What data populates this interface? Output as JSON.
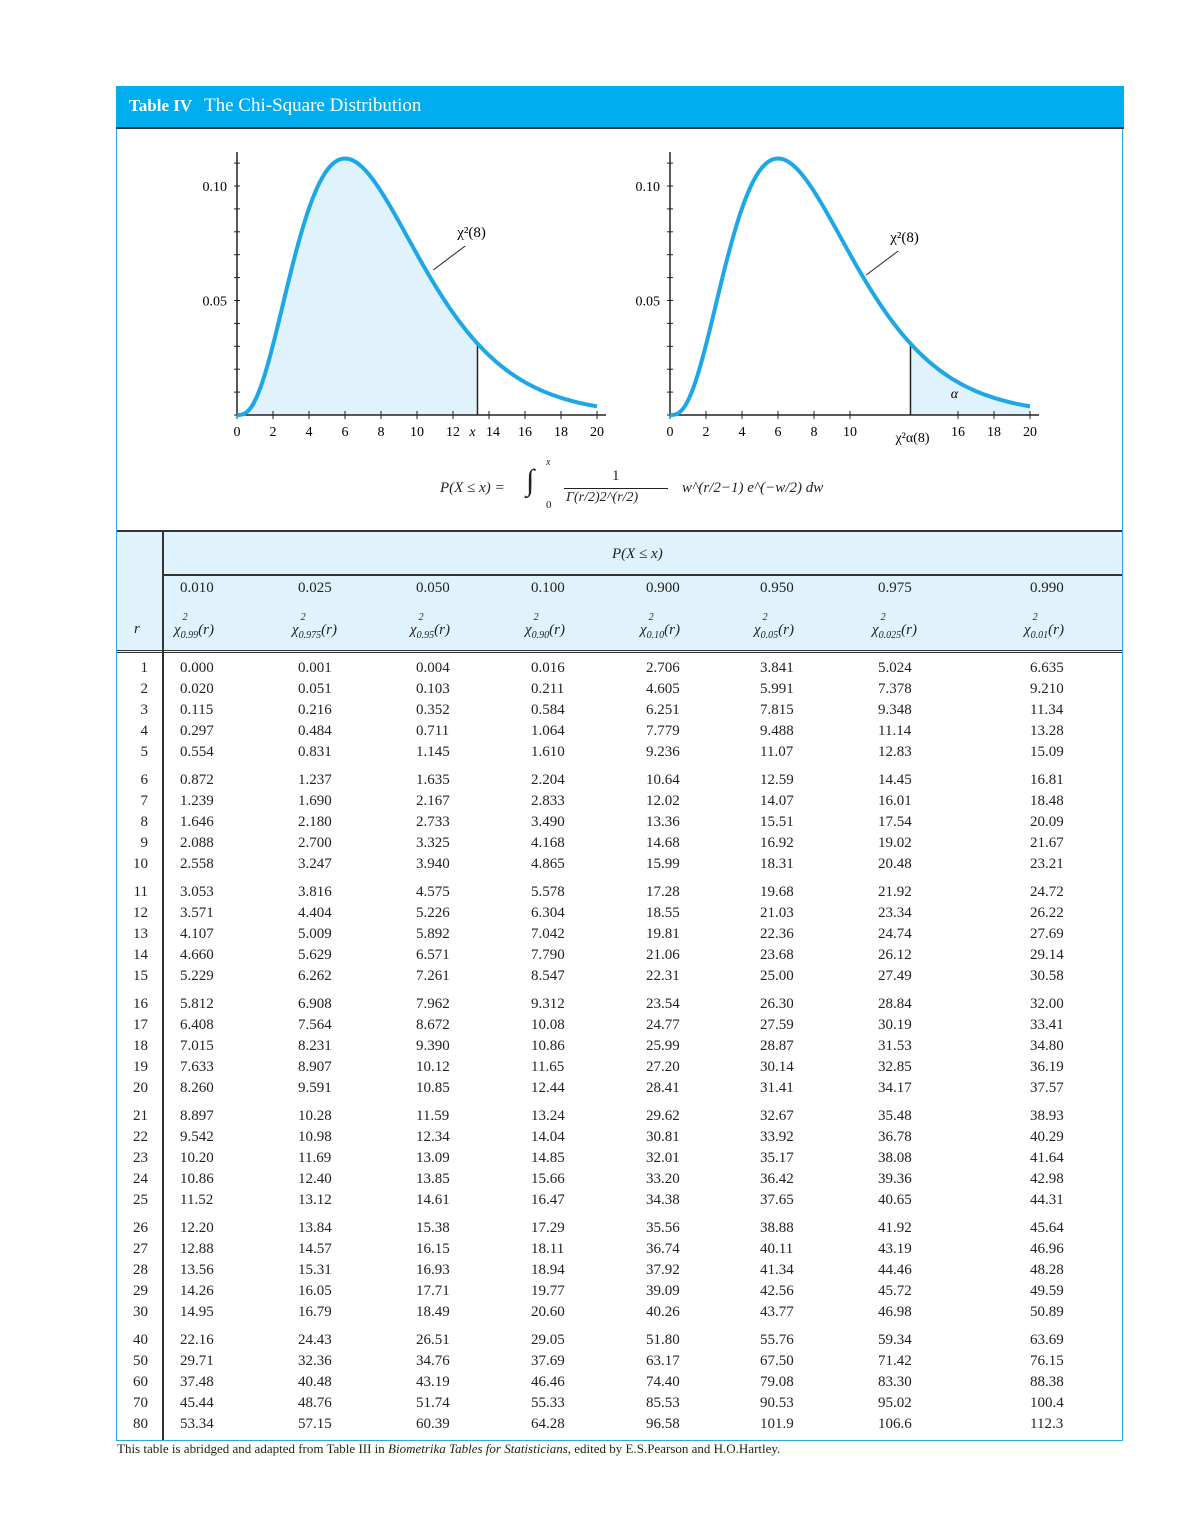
{
  "header": {
    "label": "Table IV",
    "title": "The Chi-Square Distribution",
    "accent": "#00aeef",
    "fill": "#e0f3fc"
  },
  "figures": [
    {
      "curve_label": "χ²(8)",
      "df": 8,
      "shaded": "left",
      "boundary": 13.36,
      "boundary_label": "x",
      "yticks": [
        "0.10",
        "0.05"
      ],
      "xticks": [
        "0",
        "2",
        "4",
        "6",
        "8",
        "10",
        "12",
        "14",
        "16",
        "18",
        "20"
      ]
    },
    {
      "curve_label": "χ²(8)",
      "df": 8,
      "shaded": "right",
      "boundary": 13.36,
      "boundary_label": "χ²α(8)",
      "area_label": "α",
      "yticks": [
        "0.10",
        "0.05"
      ],
      "xticks": [
        "0",
        "2",
        "4",
        "6",
        "8",
        "10",
        "16",
        "18",
        "20"
      ]
    }
  ],
  "formula": {
    "lhs": "P(X ≤ x) =",
    "integral": "∫",
    "lower": "0",
    "upper": "x",
    "numerator": "1",
    "denominator": "Γ(r/2)2^(r/2)",
    "integrand": "w^(r/2−1) e^(−w/2) dw"
  },
  "table": {
    "super_header": "P(X ≤ x)",
    "r_header": "r",
    "probs": [
      "0.010",
      "0.025",
      "0.050",
      "0.100",
      "0.900",
      "0.950",
      "0.975",
      "0.990"
    ],
    "quantile_subs": [
      "0.99",
      "0.975",
      "0.95",
      "0.90",
      "0.10",
      "0.05",
      "0.025",
      "0.01"
    ],
    "rows": [
      [
        "1",
        "0.000",
        "0.001",
        "0.004",
        "0.016",
        "2.706",
        "3.841",
        "5.024",
        "6.635"
      ],
      [
        "2",
        "0.020",
        "0.051",
        "0.103",
        "0.211",
        "4.605",
        "5.991",
        "7.378",
        "9.210"
      ],
      [
        "3",
        "0.115",
        "0.216",
        "0.352",
        "0.584",
        "6.251",
        "7.815",
        "9.348",
        "11.34"
      ],
      [
        "4",
        "0.297",
        "0.484",
        "0.711",
        "1.064",
        "7.779",
        "9.488",
        "11.14",
        "13.28"
      ],
      [
        "5",
        "0.554",
        "0.831",
        "1.145",
        "1.610",
        "9.236",
        "11.07",
        "12.83",
        "15.09"
      ],
      [
        "6",
        "0.872",
        "1.237",
        "1.635",
        "2.204",
        "10.64",
        "12.59",
        "14.45",
        "16.81"
      ],
      [
        "7",
        "1.239",
        "1.690",
        "2.167",
        "2.833",
        "12.02",
        "14.07",
        "16.01",
        "18.48"
      ],
      [
        "8",
        "1.646",
        "2.180",
        "2.733",
        "3.490",
        "13.36",
        "15.51",
        "17.54",
        "20.09"
      ],
      [
        "9",
        "2.088",
        "2.700",
        "3.325",
        "4.168",
        "14.68",
        "16.92",
        "19.02",
        "21.67"
      ],
      [
        "10",
        "2.558",
        "3.247",
        "3.940",
        "4.865",
        "15.99",
        "18.31",
        "20.48",
        "23.21"
      ],
      [
        "11",
        "3.053",
        "3.816",
        "4.575",
        "5.578",
        "17.28",
        "19.68",
        "21.92",
        "24.72"
      ],
      [
        "12",
        "3.571",
        "4.404",
        "5.226",
        "6.304",
        "18.55",
        "21.03",
        "23.34",
        "26.22"
      ],
      [
        "13",
        "4.107",
        "5.009",
        "5.892",
        "7.042",
        "19.81",
        "22.36",
        "24.74",
        "27.69"
      ],
      [
        "14",
        "4.660",
        "5.629",
        "6.571",
        "7.790",
        "21.06",
        "23.68",
        "26.12",
        "29.14"
      ],
      [
        "15",
        "5.229",
        "6.262",
        "7.261",
        "8.547",
        "22.31",
        "25.00",
        "27.49",
        "30.58"
      ],
      [
        "16",
        "5.812",
        "6.908",
        "7.962",
        "9.312",
        "23.54",
        "26.30",
        "28.84",
        "32.00"
      ],
      [
        "17",
        "6.408",
        "7.564",
        "8.672",
        "10.08",
        "24.77",
        "27.59",
        "30.19",
        "33.41"
      ],
      [
        "18",
        "7.015",
        "8.231",
        "9.390",
        "10.86",
        "25.99",
        "28.87",
        "31.53",
        "34.80"
      ],
      [
        "19",
        "7.633",
        "8.907",
        "10.12",
        "11.65",
        "27.20",
        "30.14",
        "32.85",
        "36.19"
      ],
      [
        "20",
        "8.260",
        "9.591",
        "10.85",
        "12.44",
        "28.41",
        "31.41",
        "34.17",
        "37.57"
      ],
      [
        "21",
        "8.897",
        "10.28",
        "11.59",
        "13.24",
        "29.62",
        "32.67",
        "35.48",
        "38.93"
      ],
      [
        "22",
        "9.542",
        "10.98",
        "12.34",
        "14.04",
        "30.81",
        "33.92",
        "36.78",
        "40.29"
      ],
      [
        "23",
        "10.20",
        "11.69",
        "13.09",
        "14.85",
        "32.01",
        "35.17",
        "38.08",
        "41.64"
      ],
      [
        "24",
        "10.86",
        "12.40",
        "13.85",
        "15.66",
        "33.20",
        "36.42",
        "39.36",
        "42.98"
      ],
      [
        "25",
        "11.52",
        "13.12",
        "14.61",
        "16.47",
        "34.38",
        "37.65",
        "40.65",
        "44.31"
      ],
      [
        "26",
        "12.20",
        "13.84",
        "15.38",
        "17.29",
        "35.56",
        "38.88",
        "41.92",
        "45.64"
      ],
      [
        "27",
        "12.88",
        "14.57",
        "16.15",
        "18.11",
        "36.74",
        "40.11",
        "43.19",
        "46.96"
      ],
      [
        "28",
        "13.56",
        "15.31",
        "16.93",
        "18.94",
        "37.92",
        "41.34",
        "44.46",
        "48.28"
      ],
      [
        "29",
        "14.26",
        "16.05",
        "17.71",
        "19.77",
        "39.09",
        "42.56",
        "45.72",
        "49.59"
      ],
      [
        "30",
        "14.95",
        "16.79",
        "18.49",
        "20.60",
        "40.26",
        "43.77",
        "46.98",
        "50.89"
      ],
      [
        "40",
        "22.16",
        "24.43",
        "26.51",
        "29.05",
        "51.80",
        "55.76",
        "59.34",
        "63.69"
      ],
      [
        "50",
        "29.71",
        "32.36",
        "34.76",
        "37.69",
        "63.17",
        "67.50",
        "71.42",
        "76.15"
      ],
      [
        "60",
        "37.48",
        "40.48",
        "43.19",
        "46.46",
        "74.40",
        "79.08",
        "83.30",
        "88.38"
      ],
      [
        "70",
        "45.44",
        "48.76",
        "51.74",
        "55.33",
        "85.53",
        "90.53",
        "95.02",
        "100.4"
      ],
      [
        "80",
        "53.34",
        "57.15",
        "60.39",
        "64.28",
        "96.58",
        "101.9",
        "106.6",
        "112.3"
      ]
    ]
  },
  "footer": {
    "pre": "This table is abridged and adapted from Table III in ",
    "book": "Biometrika Tables for Statisticians",
    "post": ", edited by E.S.Pearson and H.O.Hartley."
  }
}
